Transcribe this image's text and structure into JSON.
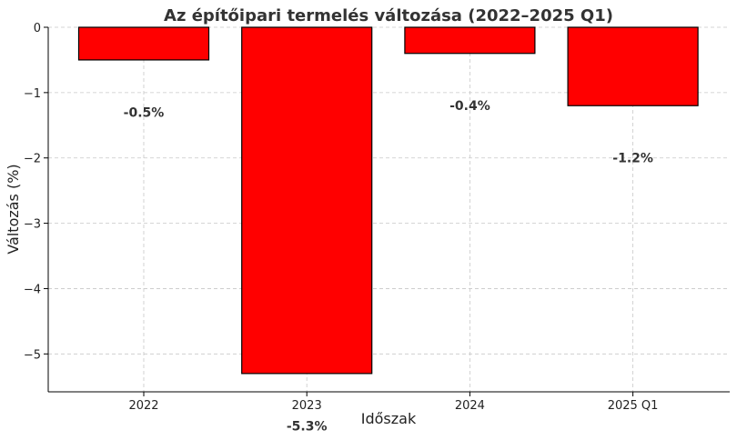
{
  "chart_data": {
    "type": "bar",
    "title": "Az építőipari termelés változása (2022–2025 Q1)",
    "xlabel": "Időszak",
    "ylabel": "Változás (%)",
    "categories": [
      "2022",
      "2023",
      "2024",
      "2025 Q1"
    ],
    "values": [
      -0.5,
      -5.3,
      -0.4,
      -1.2
    ],
    "data_labels": [
      "-0.5%",
      "-5.3%",
      "-0.4%",
      "-1.2%"
    ],
    "ylim": [
      -5.58,
      0
    ],
    "yticks": [
      0,
      -1,
      -2,
      -3,
      -4,
      -5
    ],
    "ytick_labels": [
      "0",
      "−1",
      "−2",
      "−3",
      "−4",
      "−5"
    ],
    "grid": true,
    "bar_color": "#ff0000",
    "bar_edge_color": "#000000"
  }
}
